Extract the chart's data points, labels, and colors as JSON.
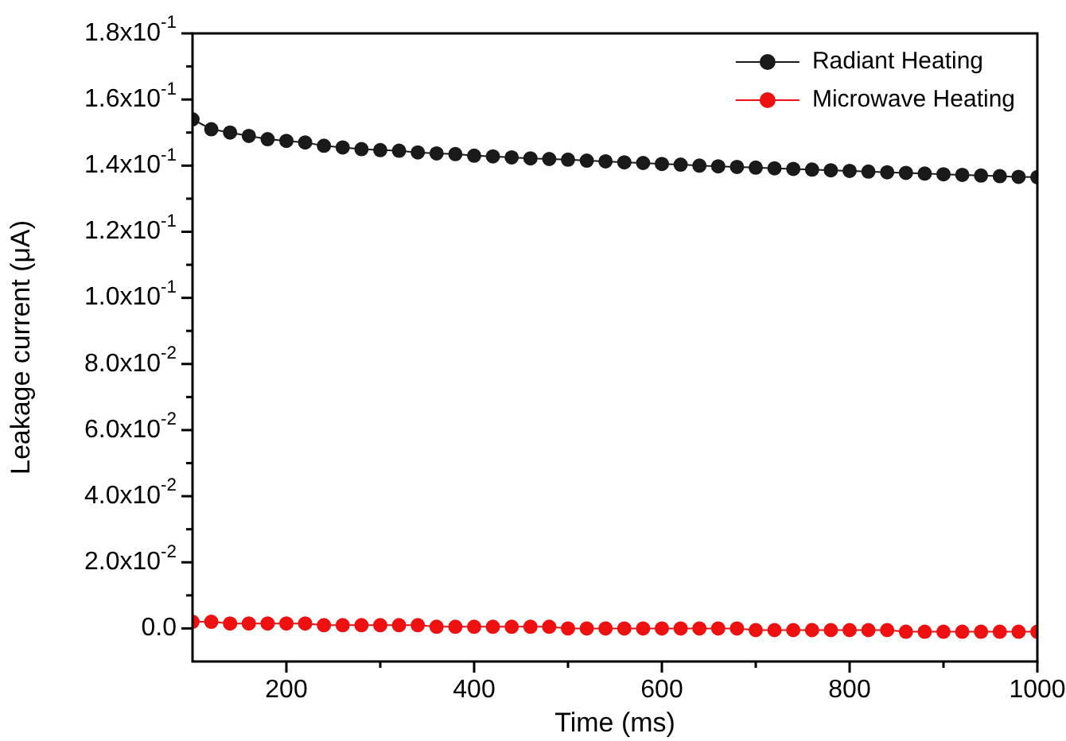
{
  "chart_data": {
    "type": "line",
    "xlabel": "Time (ms)",
    "ylabel": "Leakage current (μA)",
    "xlim": [
      100,
      1000
    ],
    "ylim": [
      -0.01,
      0.18
    ],
    "xticks": [
      {
        "value": 200,
        "label": "200"
      },
      {
        "value": 300,
        "label": null
      },
      {
        "value": 400,
        "label": "400"
      },
      {
        "value": 500,
        "label": null
      },
      {
        "value": 600,
        "label": "600"
      },
      {
        "value": 700,
        "label": null
      },
      {
        "value": 800,
        "label": "800"
      },
      {
        "value": 900,
        "label": null
      },
      {
        "value": 1000,
        "label": "1000"
      }
    ],
    "yticks": [
      {
        "value": 0,
        "label": "0.0"
      },
      {
        "value": 0.01,
        "label": null
      },
      {
        "value": 0.02,
        "label": "2.0x10$^{-2}$"
      },
      {
        "value": 0.03,
        "label": null
      },
      {
        "value": 0.04,
        "label": "4.0x10$^{-2}$"
      },
      {
        "value": 0.05,
        "label": null
      },
      {
        "value": 0.06,
        "label": "6.0x10$^{-2}$"
      },
      {
        "value": 0.07,
        "label": null
      },
      {
        "value": 0.08,
        "label": "8.0x10$^{-2}$"
      },
      {
        "value": 0.09,
        "label": null
      },
      {
        "value": 0.1,
        "label": "1.0x10$^{-1}$"
      },
      {
        "value": 0.11,
        "label": null
      },
      {
        "value": 0.12,
        "label": "1.2x10$^{-1}$"
      },
      {
        "value": 0.13,
        "label": null
      },
      {
        "value": 0.14,
        "label": "1.4x10$^{-1}$"
      },
      {
        "value": 0.15,
        "label": null
      },
      {
        "value": 0.16,
        "label": "1.6x10$^{-1}$"
      },
      {
        "value": 0.17,
        "label": null
      },
      {
        "value": 0.18,
        "label": "1.8x10$^{-1}$"
      }
    ],
    "x": [
      100,
      120,
      140,
      160,
      180,
      200,
      220,
      240,
      260,
      280,
      300,
      320,
      340,
      360,
      380,
      400,
      420,
      440,
      460,
      480,
      500,
      520,
      540,
      560,
      580,
      600,
      620,
      640,
      660,
      680,
      700,
      720,
      740,
      760,
      780,
      800,
      820,
      840,
      860,
      880,
      900,
      920,
      940,
      960,
      980,
      1000
    ],
    "series": [
      {
        "name": "Radiant Heating",
        "color": "#1a1a1a",
        "values": [
          0.154,
          0.151,
          0.15,
          0.149,
          0.148,
          0.1475,
          0.147,
          0.146,
          0.1455,
          0.145,
          0.1447,
          0.1445,
          0.144,
          0.1437,
          0.1435,
          0.143,
          0.1428,
          0.1425,
          0.1422,
          0.142,
          0.1418,
          0.1415,
          0.1413,
          0.141,
          0.1408,
          0.1405,
          0.1403,
          0.14,
          0.1398,
          0.1396,
          0.1394,
          0.1392,
          0.139,
          0.1388,
          0.1386,
          0.1384,
          0.1382,
          0.138,
          0.1378,
          0.1376,
          0.1374,
          0.1372,
          0.137,
          0.1368,
          0.1366,
          0.1365
        ]
      },
      {
        "name": "Microwave Heating",
        "color": "#ee1111",
        "values": [
          0.002,
          0.002,
          0.0015,
          0.0015,
          0.0015,
          0.0015,
          0.0015,
          0.001,
          0.001,
          0.001,
          0.001,
          0.001,
          0.001,
          0.0005,
          0.0005,
          0.0005,
          0.0005,
          0.0005,
          0.0005,
          0.0005,
          0,
          0,
          0,
          0,
          0,
          0,
          0,
          0,
          0,
          0,
          -0.0005,
          -0.0005,
          -0.0005,
          -0.0005,
          -0.0005,
          -0.0005,
          -0.0005,
          -0.0005,
          -0.001,
          -0.001,
          -0.001,
          -0.001,
          -0.001,
          -0.001,
          -0.001,
          -0.001
        ]
      }
    ],
    "legend": "top right",
    "grid": false,
    "marker": "circle",
    "line_style": "solid"
  }
}
